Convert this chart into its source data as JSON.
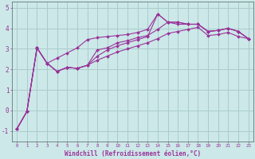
{
  "background_color": "#cce8e8",
  "line_color": "#993399",
  "grid_color": "#aacccc",
  "ylabel_ticks": [
    -1,
    0,
    1,
    2,
    3,
    4,
    5
  ],
  "xlim": [
    -0.5,
    23.5
  ],
  "ylim": [
    -1.5,
    5.3
  ],
  "xlabel": "Windchill (Refroidissement éolien,°C)",
  "series1_x": [
    0,
    1,
    2,
    3,
    4,
    5,
    6,
    7,
    8,
    9,
    10,
    11,
    12,
    13,
    14,
    15,
    16,
    17,
    18,
    19,
    20,
    21,
    22,
    23
  ],
  "series1_y": [
    -0.9,
    -0.05,
    3.05,
    2.3,
    1.9,
    2.1,
    2.05,
    2.2,
    2.95,
    3.05,
    3.3,
    3.4,
    3.55,
    3.65,
    3.95,
    4.3,
    4.3,
    4.2,
    4.2,
    3.85,
    3.9,
    4.0,
    3.85,
    3.5
  ],
  "series2_x": [
    0,
    1,
    2,
    3,
    4,
    5,
    6,
    7,
    8,
    9,
    10,
    11,
    12,
    13,
    14,
    15,
    16,
    17,
    18,
    19,
    20,
    21,
    22,
    23
  ],
  "series2_y": [
    -0.9,
    -0.05,
    3.05,
    2.3,
    2.55,
    2.8,
    3.05,
    3.45,
    3.55,
    3.6,
    3.65,
    3.7,
    3.8,
    3.95,
    4.7,
    4.3,
    4.3,
    4.2,
    4.2,
    3.85,
    3.9,
    4.0,
    3.85,
    3.5
  ],
  "series3_x": [
    0,
    1,
    2,
    3,
    4,
    5,
    6,
    7,
    8,
    9,
    10,
    11,
    12,
    13,
    14,
    15,
    16,
    17,
    18,
    19,
    20,
    21,
    22,
    23
  ],
  "series3_y": [
    -0.9,
    -0.05,
    3.05,
    2.3,
    1.9,
    2.1,
    2.05,
    2.2,
    2.65,
    2.95,
    3.15,
    3.3,
    3.45,
    3.6,
    4.7,
    4.3,
    4.2,
    4.2,
    4.2,
    3.85,
    3.9,
    4.0,
    3.85,
    3.5
  ],
  "series4_x": [
    0,
    1,
    2,
    3,
    4,
    5,
    6,
    7,
    8,
    9,
    10,
    11,
    12,
    13,
    14,
    15,
    16,
    17,
    18,
    19,
    20,
    21,
    22,
    23
  ],
  "series4_y": [
    -0.9,
    -0.05,
    3.05,
    2.3,
    1.9,
    2.1,
    2.05,
    2.2,
    2.45,
    2.65,
    2.85,
    3.0,
    3.15,
    3.3,
    3.5,
    3.75,
    3.85,
    3.95,
    4.05,
    3.65,
    3.7,
    3.8,
    3.6,
    3.5
  ],
  "marker": "D",
  "markersize": 2.0,
  "linewidth": 0.8
}
